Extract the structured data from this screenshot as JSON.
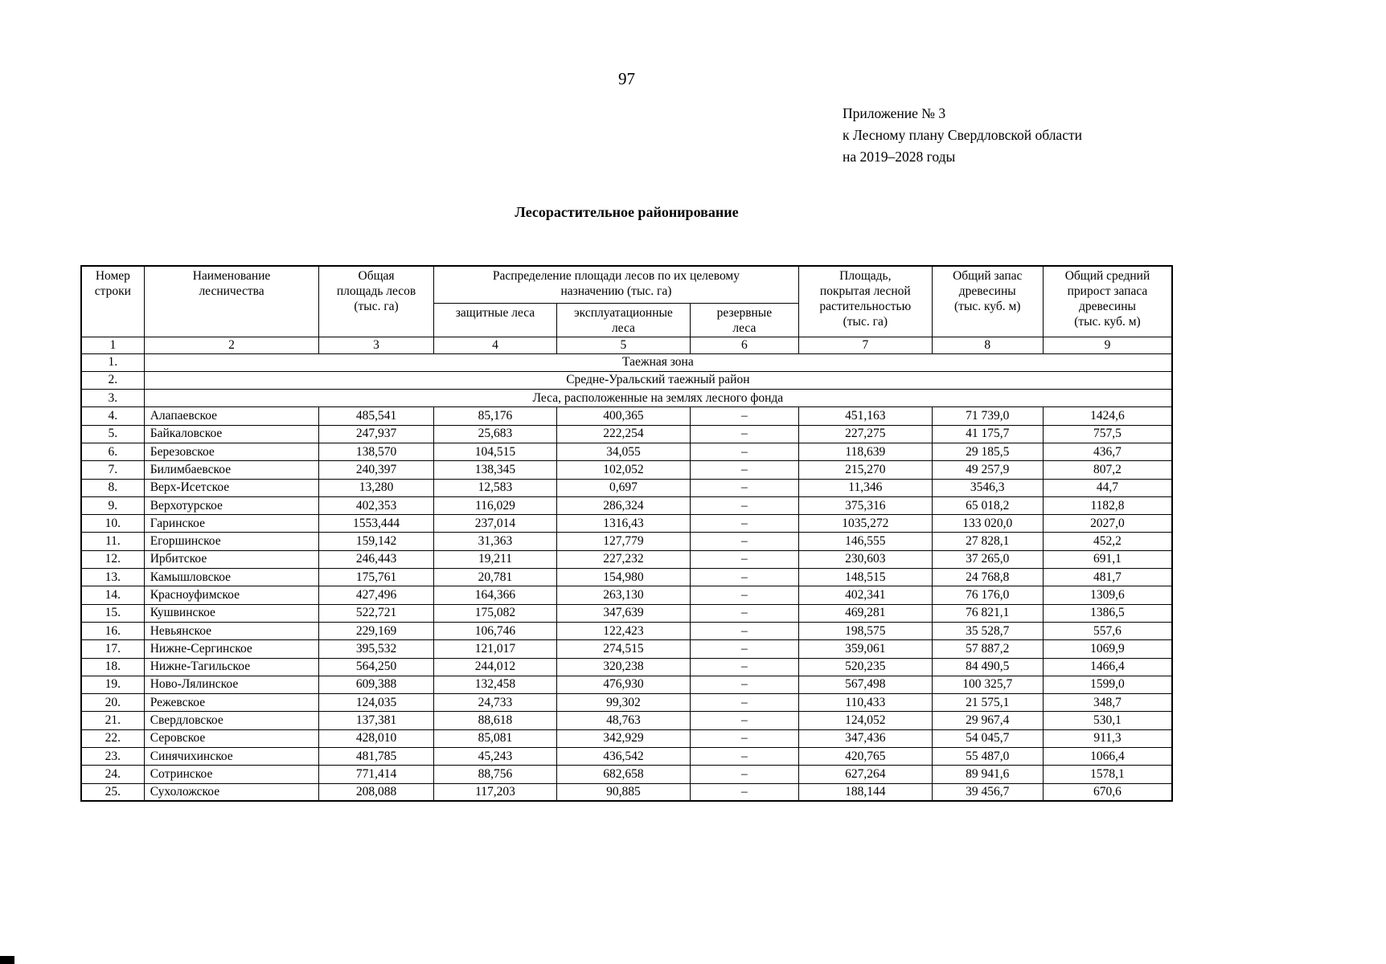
{
  "page": {
    "number": "97",
    "appendix_lines": [
      "Приложение № 3",
      "к Лесному плану Свердловской области",
      "на 2019–2028 годы"
    ],
    "title": "Лесорастительное районирование"
  },
  "table": {
    "header": {
      "col1": "Номер\nстроки",
      "col2": "Наименование\nлесничества",
      "col3": "Общая\nплощадь лесов\n(тыс. га)",
      "group": "Распределение площади лесов по их целевому\nназначению (тыс. га)",
      "col4": "защитные леса",
      "col5": "эксплуатационные\nлеса",
      "col6": "резервные\nлеса",
      "col7": "Площадь,\nпокрытая лесной\nрастительностью\n(тыс. га)",
      "col8": "Общий запас\nдревесины\n(тыс. куб. м)",
      "col9": "Общий средний\nприрост запаса\nдревесины\n(тыс. куб. м)"
    },
    "index_row": [
      "1",
      "2",
      "3",
      "4",
      "5",
      "6",
      "7",
      "8",
      "9"
    ],
    "section_rows": [
      {
        "num": "1.",
        "label": "Таежная зона"
      },
      {
        "num": "2.",
        "label": "Средне-Уральский таежный район"
      },
      {
        "num": "3.",
        "label": "Леса, расположенные на землях лесного фонда"
      }
    ],
    "rows": [
      {
        "num": "4.",
        "name": "Алапаевское",
        "total": "485,541",
        "protective": "85,176",
        "exploitable": "400,365",
        "reserve": "–",
        "covered": "451,163",
        "stock": "71 739,0",
        "growth": "1424,6"
      },
      {
        "num": "5.",
        "name": "Байкаловское",
        "total": "247,937",
        "protective": "25,683",
        "exploitable": "222,254",
        "reserve": "–",
        "covered": "227,275",
        "stock": "41 175,7",
        "growth": "757,5"
      },
      {
        "num": "6.",
        "name": "Березовское",
        "total": "138,570",
        "protective": "104,515",
        "exploitable": "34,055",
        "reserve": "–",
        "covered": "118,639",
        "stock": "29 185,5",
        "growth": "436,7"
      },
      {
        "num": "7.",
        "name": "Билимбаевское",
        "total": "240,397",
        "protective": "138,345",
        "exploitable": "102,052",
        "reserve": "–",
        "covered": "215,270",
        "stock": "49 257,9",
        "growth": "807,2"
      },
      {
        "num": "8.",
        "name": "Верх-Исетское",
        "total": "13,280",
        "protective": "12,583",
        "exploitable": "0,697",
        "reserve": "–",
        "covered": "11,346",
        "stock": "3546,3",
        "growth": "44,7"
      },
      {
        "num": "9.",
        "name": "Верхотурское",
        "total": "402,353",
        "protective": "116,029",
        "exploitable": "286,324",
        "reserve": "–",
        "covered": "375,316",
        "stock": "65 018,2",
        "growth": "1182,8"
      },
      {
        "num": "10.",
        "name": "Гаринское",
        "total": "1553,444",
        "protective": "237,014",
        "exploitable": "1316,43",
        "reserve": "–",
        "covered": "1035,272",
        "stock": "133 020,0",
        "growth": "2027,0"
      },
      {
        "num": "11.",
        "name": "Егоршинское",
        "total": "159,142",
        "protective": "31,363",
        "exploitable": "127,779",
        "reserve": "–",
        "covered": "146,555",
        "stock": "27 828,1",
        "growth": "452,2"
      },
      {
        "num": "12.",
        "name": "Ирбитское",
        "total": "246,443",
        "protective": "19,211",
        "exploitable": "227,232",
        "reserve": "–",
        "covered": "230,603",
        "stock": "37 265,0",
        "growth": "691,1"
      },
      {
        "num": "13.",
        "name": "Камышловское",
        "total": "175,761",
        "protective": "20,781",
        "exploitable": "154,980",
        "reserve": "–",
        "covered": "148,515",
        "stock": "24 768,8",
        "growth": "481,7"
      },
      {
        "num": "14.",
        "name": "Красноуфимское",
        "total": "427,496",
        "protective": "164,366",
        "exploitable": "263,130",
        "reserve": "–",
        "covered": "402,341",
        "stock": "76 176,0",
        "growth": "1309,6"
      },
      {
        "num": "15.",
        "name": "Кушвинское",
        "total": "522,721",
        "protective": "175,082",
        "exploitable": "347,639",
        "reserve": "–",
        "covered": "469,281",
        "stock": "76 821,1",
        "growth": "1386,5"
      },
      {
        "num": "16.",
        "name": "Невьянское",
        "total": "229,169",
        "protective": "106,746",
        "exploitable": "122,423",
        "reserve": "–",
        "covered": "198,575",
        "stock": "35 528,7",
        "growth": "557,6"
      },
      {
        "num": "17.",
        "name": "Нижне-Сергинское",
        "total": "395,532",
        "protective": "121,017",
        "exploitable": "274,515",
        "reserve": "–",
        "covered": "359,061",
        "stock": "57 887,2",
        "growth": "1069,9"
      },
      {
        "num": "18.",
        "name": "Нижне-Тагильское",
        "total": "564,250",
        "protective": "244,012",
        "exploitable": "320,238",
        "reserve": "–",
        "covered": "520,235",
        "stock": "84 490,5",
        "growth": "1466,4"
      },
      {
        "num": "19.",
        "name": "Ново-Лялинское",
        "total": "609,388",
        "protective": "132,458",
        "exploitable": "476,930",
        "reserve": "–",
        "covered": "567,498",
        "stock": "100 325,7",
        "growth": "1599,0"
      },
      {
        "num": "20.",
        "name": "Режевское",
        "total": "124,035",
        "protective": "24,733",
        "exploitable": "99,302",
        "reserve": "–",
        "covered": "110,433",
        "stock": "21 575,1",
        "growth": "348,7"
      },
      {
        "num": "21.",
        "name": "Свердловское",
        "total": "137,381",
        "protective": "88,618",
        "exploitable": "48,763",
        "reserve": "–",
        "covered": "124,052",
        "stock": "29 967,4",
        "growth": "530,1"
      },
      {
        "num": "22.",
        "name": "Серовское",
        "total": "428,010",
        "protective": "85,081",
        "exploitable": "342,929",
        "reserve": "–",
        "covered": "347,436",
        "stock": "54 045,7",
        "growth": "911,3"
      },
      {
        "num": "23.",
        "name": "Синячихинское",
        "total": "481,785",
        "protective": "45,243",
        "exploitable": "436,542",
        "reserve": "–",
        "covered": "420,765",
        "stock": "55 487,0",
        "growth": "1066,4"
      },
      {
        "num": "24.",
        "name": "Сотринское",
        "total": "771,414",
        "protective": "88,756",
        "exploitable": "682,658",
        "reserve": "–",
        "covered": "627,264",
        "stock": "89 941,6",
        "growth": "1578,1"
      },
      {
        "num": "25.",
        "name": "Сухоложское",
        "total": "208,088",
        "protective": "117,203",
        "exploitable": "90,885",
        "reserve": "–",
        "covered": "188,144",
        "stock": "39 456,7",
        "growth": "670,6"
      }
    ]
  }
}
